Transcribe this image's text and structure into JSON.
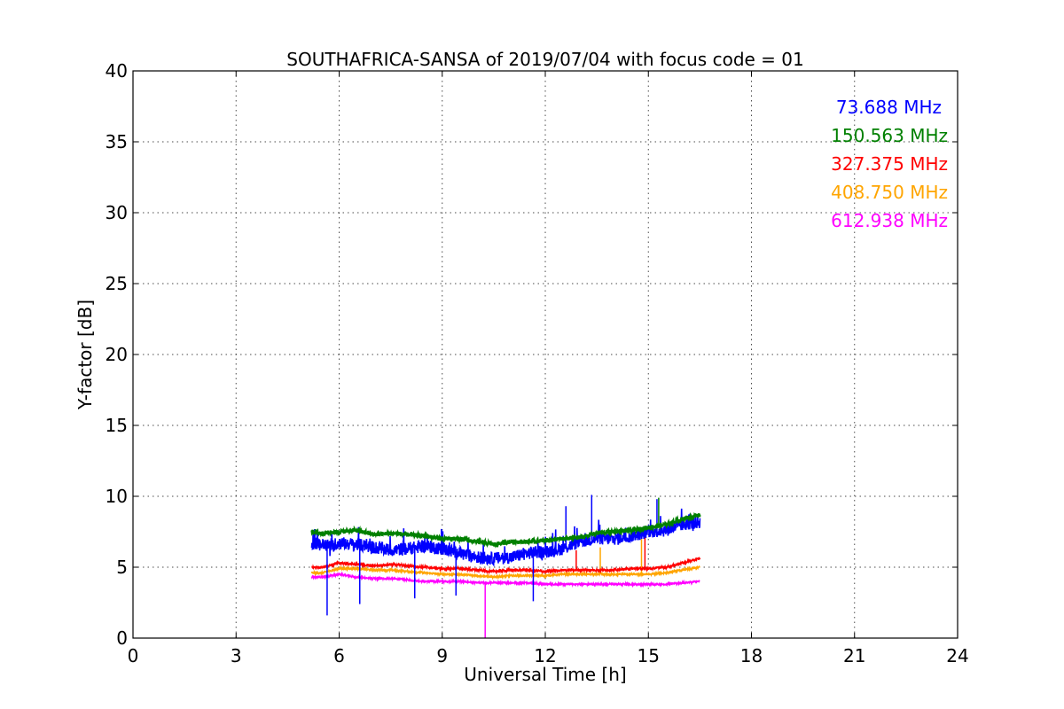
{
  "chart_data": {
    "type": "line",
    "title": "SOUTHAFRICA-SANSA of 2019/07/04 with focus code = 01",
    "xlabel": "Universal Time [h]",
    "ylabel": "Y-factor [dB]",
    "xlim": [
      0,
      24
    ],
    "ylim": [
      0,
      40
    ],
    "xticks": [
      "0",
      "3",
      "6",
      "9",
      "12",
      "15",
      "18",
      "21",
      "24"
    ],
    "yticks": [
      "0",
      "5",
      "10",
      "15",
      "20",
      "25",
      "30",
      "35",
      "40"
    ],
    "grid": true,
    "legend_position": "top-right",
    "series": [
      {
        "name": "73.688 MHz",
        "color": "#0000ff",
        "x": [
          5.2,
          5.5,
          5.8,
          6.0,
          6.5,
          7.0,
          7.5,
          8.0,
          8.5,
          9.0,
          9.5,
          10.0,
          10.5,
          11.0,
          11.5,
          12.0,
          12.5,
          13.0,
          13.5,
          14.0,
          14.5,
          15.0,
          15.5,
          16.0,
          16.5
        ],
        "y": [
          6.7,
          6.6,
          6.5,
          6.7,
          6.6,
          6.4,
          6.2,
          6.3,
          6.5,
          6.3,
          6.0,
          5.7,
          5.6,
          5.7,
          6.0,
          6.1,
          6.3,
          6.8,
          7.0,
          7.0,
          7.2,
          7.5,
          7.6,
          8.0,
          8.2
        ],
        "spikes": [
          [
            5.65,
            1.6
          ],
          [
            6.6,
            2.4
          ],
          [
            8.2,
            2.8
          ],
          [
            9.4,
            3.0
          ],
          [
            11.65,
            2.6
          ],
          [
            12.6,
            9.3
          ],
          [
            13.35,
            10.1
          ],
          [
            15.25,
            9.8
          ]
        ]
      },
      {
        "name": "150.563 MHz",
        "color": "#008000",
        "x": [
          5.2,
          5.5,
          6.0,
          6.5,
          7.0,
          7.5,
          8.0,
          8.5,
          9.0,
          9.5,
          10.0,
          10.5,
          11.0,
          11.5,
          12.0,
          12.5,
          13.0,
          13.5,
          14.0,
          14.5,
          15.0,
          15.5,
          16.0,
          16.5
        ],
        "y": [
          7.5,
          7.4,
          7.5,
          7.6,
          7.3,
          7.4,
          7.3,
          7.2,
          7.0,
          7.0,
          6.8,
          6.6,
          6.8,
          6.8,
          6.9,
          7.0,
          7.1,
          7.4,
          7.5,
          7.6,
          7.8,
          8.0,
          8.4,
          8.7
        ],
        "spikes": [
          [
            15.3,
            9.9
          ]
        ]
      },
      {
        "name": "327.375 MHz",
        "color": "#ff0000",
        "x": [
          5.2,
          5.5,
          6.0,
          6.5,
          7.0,
          7.5,
          8.0,
          8.5,
          9.0,
          9.5,
          10.0,
          10.5,
          11.0,
          11.5,
          12.0,
          12.5,
          13.0,
          13.5,
          14.0,
          14.5,
          15.0,
          15.5,
          16.0,
          16.5
        ],
        "y": [
          5.0,
          5.0,
          5.3,
          5.2,
          5.1,
          5.2,
          5.1,
          5.0,
          4.9,
          4.9,
          4.8,
          4.7,
          4.8,
          4.8,
          4.7,
          4.8,
          4.8,
          4.8,
          4.8,
          4.9,
          4.9,
          5.0,
          5.3,
          5.6
        ],
        "spikes": [
          [
            12.9,
            6.2
          ],
          [
            14.9,
            7.3
          ]
        ]
      },
      {
        "name": "408.750 MHz",
        "color": "#ffa500",
        "x": [
          5.2,
          5.5,
          6.0,
          6.5,
          7.0,
          7.5,
          8.0,
          8.5,
          9.0,
          9.5,
          10.0,
          10.5,
          11.0,
          11.5,
          12.0,
          12.5,
          13.0,
          13.5,
          14.0,
          14.5,
          15.0,
          15.5,
          16.0,
          16.5
        ],
        "y": [
          4.6,
          4.6,
          4.9,
          4.9,
          4.8,
          4.8,
          4.7,
          4.6,
          4.5,
          4.5,
          4.4,
          4.3,
          4.4,
          4.4,
          4.4,
          4.5,
          4.5,
          4.5,
          4.5,
          4.5,
          4.5,
          4.6,
          4.8,
          5.0
        ],
        "spikes": [
          [
            13.6,
            6.4
          ],
          [
            14.8,
            7.0
          ]
        ]
      },
      {
        "name": "612.938 MHz",
        "color": "#ff00ff",
        "x": [
          5.2,
          5.5,
          6.0,
          6.5,
          7.0,
          7.5,
          8.0,
          8.5,
          9.0,
          9.5,
          10.0,
          10.5,
          11.0,
          11.5,
          12.0,
          12.5,
          13.0,
          13.5,
          14.0,
          14.5,
          15.0,
          15.5,
          16.0,
          16.5
        ],
        "y": [
          4.3,
          4.3,
          4.5,
          4.3,
          4.2,
          4.2,
          4.1,
          4.0,
          4.0,
          4.0,
          3.9,
          3.9,
          3.9,
          3.9,
          3.8,
          3.8,
          3.8,
          3.8,
          3.8,
          3.8,
          3.8,
          3.8,
          3.9,
          4.0
        ],
        "spikes": [
          [
            10.25,
            0.0
          ]
        ]
      }
    ]
  }
}
